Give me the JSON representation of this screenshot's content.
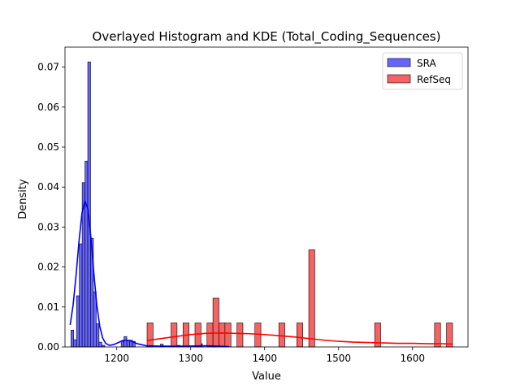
{
  "chart_data": {
    "type": "histogram",
    "title": "Overlayed Histogram and KDE (Total_Coding_Sequences)",
    "xlabel": "Value",
    "ylabel": "Density",
    "xlim": [
      1130,
      1675
    ],
    "ylim": [
      0,
      0.075
    ],
    "xticks": [
      1200,
      1300,
      1400,
      1500,
      1600
    ],
    "xtick_labels": [
      "1200",
      "1300",
      "1400",
      "1500",
      "1600"
    ],
    "yticks": [
      0.0,
      0.01,
      0.02,
      0.03,
      0.04,
      0.05,
      0.06,
      0.07
    ],
    "ytick_labels": [
      "0.00",
      "0.01",
      "0.02",
      "0.03",
      "0.04",
      "0.05",
      "0.06",
      "0.07"
    ],
    "grid": false,
    "legend_position": "top-right",
    "series": [
      {
        "name": "SRA",
        "color": "#0000ff",
        "fill": "#6666ff",
        "bin_width": 3.8,
        "bins": [
          [
            1138,
            0.0042
          ],
          [
            1141.8,
            0.0018
          ],
          [
            1145.6,
            0.0128
          ],
          [
            1149.4,
            0.0258
          ],
          [
            1153.2,
            0.0411
          ],
          [
            1157,
            0.0465
          ],
          [
            1160.8,
            0.0713
          ],
          [
            1164.6,
            0.0272
          ],
          [
            1168.4,
            0.0138
          ],
          [
            1172.2,
            0.0058
          ],
          [
            1176,
            0.0012
          ],
          [
            1180,
            0.0004
          ],
          [
            1206,
            0.0014
          ],
          [
            1209.8,
            0.0026
          ],
          [
            1213.6,
            0.0017
          ],
          [
            1217.4,
            0.0017
          ],
          [
            1221.2,
            0.0014
          ],
          [
            1259,
            0.0007
          ],
          [
            1282,
            0.0004
          ],
          [
            1308,
            0.0004
          ],
          [
            1312,
            0.0008
          ],
          [
            1330,
            0.0004
          ],
          [
            1350,
            0.0007
          ]
        ],
        "kde": [
          [
            1137,
            0.0055
          ],
          [
            1141,
            0.0105
          ],
          [
            1145,
            0.018
          ],
          [
            1149,
            0.0265
          ],
          [
            1153,
            0.0335
          ],
          [
            1157,
            0.0365
          ],
          [
            1161,
            0.0345
          ],
          [
            1165,
            0.0275
          ],
          [
            1169,
            0.0185
          ],
          [
            1173,
            0.0105
          ],
          [
            1177,
            0.0052
          ],
          [
            1181,
            0.0022
          ],
          [
            1185,
            0.0009
          ],
          [
            1190,
            0.0004
          ],
          [
            1196,
            0.0006
          ],
          [
            1202,
            0.0011
          ],
          [
            1208,
            0.0016
          ],
          [
            1214,
            0.0017
          ],
          [
            1220,
            0.0014
          ],
          [
            1228,
            0.0008
          ],
          [
            1240,
            0.0003
          ],
          [
            1260,
            0.0002
          ],
          [
            1290,
            0.0002
          ],
          [
            1320,
            0.0003
          ],
          [
            1340,
            0.0002
          ],
          [
            1352,
            0.0001
          ]
        ]
      },
      {
        "name": "RefSeq",
        "color": "#ff0000",
        "fill": "#f56464",
        "bin_width": 8.1,
        "bins": [
          [
            1241,
            0.006
          ],
          [
            1273.4,
            0.006
          ],
          [
            1289.6,
            0.006
          ],
          [
            1305.8,
            0.006
          ],
          [
            1322,
            0.006
          ],
          [
            1330.1,
            0.0122
          ],
          [
            1338.2,
            0.006
          ],
          [
            1346.3,
            0.006
          ],
          [
            1362.5,
            0.006
          ],
          [
            1386.8,
            0.006
          ],
          [
            1419.2,
            0.006
          ],
          [
            1443.5,
            0.006
          ],
          [
            1459.7,
            0.0243
          ],
          [
            1548.8,
            0.006
          ],
          [
            1629.8,
            0.006
          ],
          [
            1646,
            0.006
          ]
        ],
        "kde": [
          [
            1241,
            0.0016
          ],
          [
            1260,
            0.0021
          ],
          [
            1280,
            0.0026
          ],
          [
            1300,
            0.0031
          ],
          [
            1320,
            0.0034
          ],
          [
            1340,
            0.0035
          ],
          [
            1360,
            0.0034
          ],
          [
            1380,
            0.0033
          ],
          [
            1400,
            0.0031
          ],
          [
            1420,
            0.0028
          ],
          [
            1440,
            0.0025
          ],
          [
            1460,
            0.0021
          ],
          [
            1480,
            0.0017
          ],
          [
            1500,
            0.0014
          ],
          [
            1520,
            0.0012
          ],
          [
            1540,
            0.0011
          ],
          [
            1560,
            0.001
          ],
          [
            1580,
            0.0009
          ],
          [
            1600,
            0.0009
          ],
          [
            1620,
            0.0008
          ],
          [
            1640,
            0.0008
          ],
          [
            1654,
            0.0007
          ]
        ]
      }
    ]
  }
}
